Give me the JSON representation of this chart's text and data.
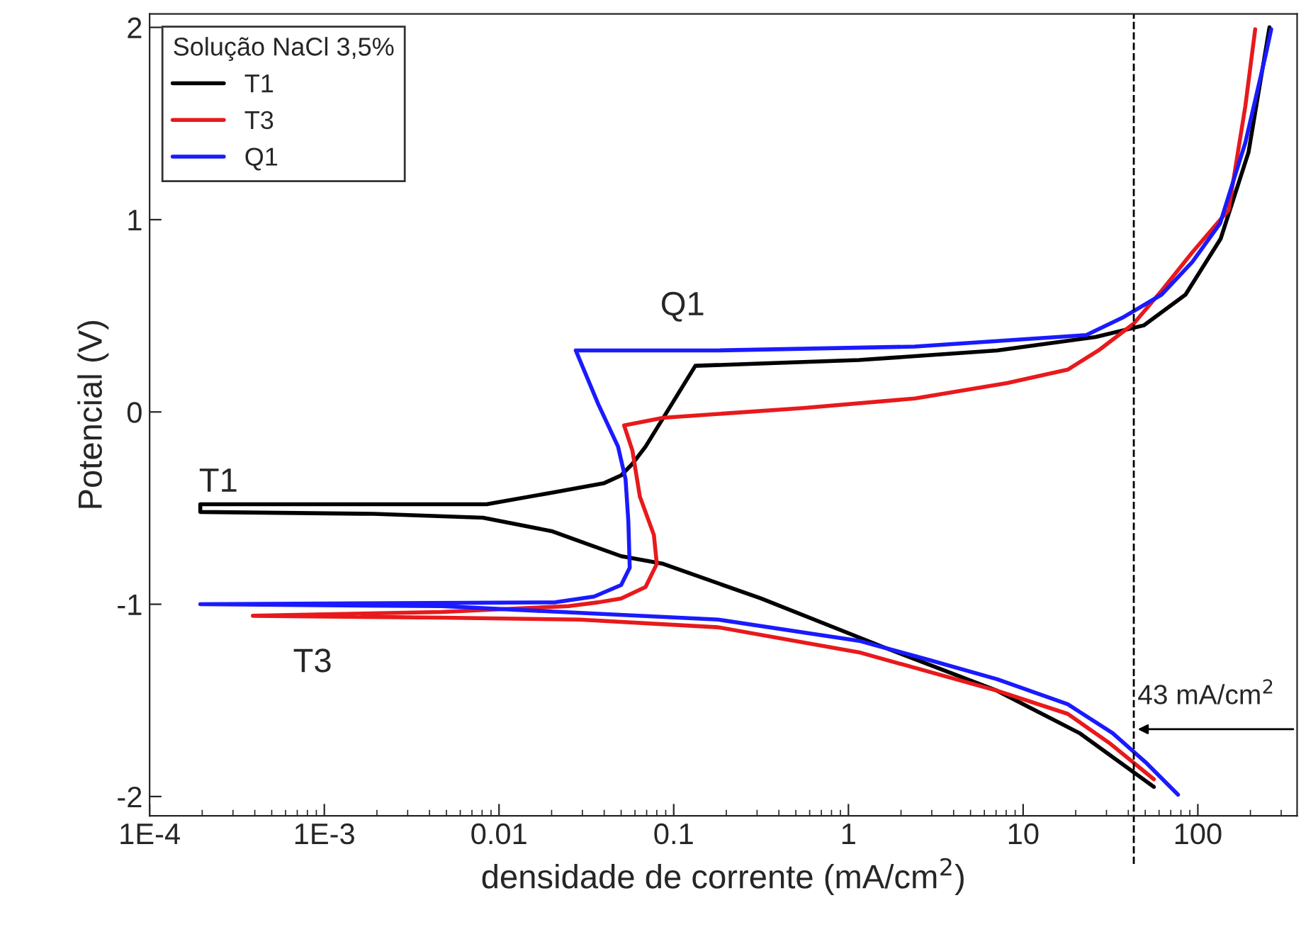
{
  "chart_data": {
    "type": "line",
    "xlabel": "densidade de corrente (mA/cm$^{2}$)",
    "ylabel": "Potencial (V)",
    "legend_title": "Solução NaCl 3,5%",
    "log": "x",
    "xlim": [
      0.0001,
      370
    ],
    "ylim": [
      -2.1,
      2.07
    ],
    "xticks": [
      {
        "value": 0.0001,
        "label": "1E-4"
      },
      {
        "value": 0.001,
        "label": "1E-3"
      },
      0.01,
      0.1,
      1,
      10,
      100
    ],
    "yticks": [
      {
        "value": -2,
        "label": "-2"
      },
      {
        "value": -1,
        "label": "-1"
      },
      0,
      1,
      2
    ],
    "grid": false,
    "legend": "top left",
    "line_style": "solid",
    "marker": "none",
    "series": [
      {
        "name": "T1",
        "color": "#000000",
        "x": [
          56,
          21,
          7.1,
          1.66,
          0.316,
          0.087,
          0.05,
          0.02,
          0.0081,
          0.0019,
          0.000195,
          0.000195,
          0.0019,
          0.0085,
          0.02,
          0.04,
          0.05,
          0.058,
          0.069,
          0.133,
          1.15,
          7.1,
          26,
          49,
          85,
          135,
          195,
          257
        ],
        "values": [
          -1.95,
          -1.67,
          -1.45,
          -1.23,
          -0.97,
          -0.79,
          -0.75,
          -0.62,
          -0.55,
          -0.53,
          -0.52,
          -0.48,
          -0.48,
          -0.48,
          -0.42,
          -0.37,
          -0.33,
          -0.27,
          -0.18,
          0.24,
          0.27,
          0.32,
          0.39,
          0.45,
          0.61,
          0.9,
          1.35,
          2.0
        ]
      },
      {
        "name": "T3",
        "color": "#e8191c",
        "x": [
          56,
          31,
          18,
          7.1,
          1.15,
          0.18,
          0.029,
          0.0047,
          0.00039,
          0.0047,
          0.025,
          0.037,
          0.05,
          0.069,
          0.08,
          0.077,
          0.064,
          0.058,
          0.052,
          0.087,
          0.55,
          2.4,
          8.1,
          18,
          27,
          43,
          62,
          93,
          150,
          187,
          213
        ],
        "values": [
          -1.91,
          -1.72,
          -1.57,
          -1.45,
          -1.25,
          -1.12,
          -1.08,
          -1.07,
          -1.06,
          -1.04,
          -1.01,
          -0.99,
          -0.97,
          -0.91,
          -0.79,
          -0.64,
          -0.44,
          -0.2,
          -0.07,
          -0.03,
          0.02,
          0.07,
          0.15,
          0.22,
          0.32,
          0.46,
          0.63,
          0.83,
          1.05,
          1.59,
          1.99
        ]
      },
      {
        "name": "Q1",
        "color": "#1a1aff",
        "x": [
          77,
          50,
          32.5,
          18,
          7.1,
          2.9,
          1.15,
          0.18,
          0.0047,
          0.000195,
          0.000195,
          0.021,
          0.035,
          0.05,
          0.056,
          0.055,
          0.053,
          0.048,
          0.037,
          0.0275,
          0.18,
          2.4,
          23,
          37,
          62,
          93,
          134,
          187,
          245,
          263
        ],
        "values": [
          -1.99,
          -1.82,
          -1.67,
          -1.52,
          -1.39,
          -1.29,
          -1.19,
          -1.08,
          -1.01,
          -1.0,
          -1.0,
          -0.99,
          -0.96,
          -0.9,
          -0.81,
          -0.57,
          -0.35,
          -0.18,
          0.04,
          0.32,
          0.32,
          0.34,
          0.4,
          0.49,
          0.61,
          0.78,
          0.98,
          1.4,
          1.86,
          1.99
        ]
      }
    ],
    "ref_lines": [
      {
        "axis": "x",
        "value": 43,
        "line_style": "dashed",
        "color": "#000000"
      }
    ],
    "annotations": [
      "T1",
      "T3",
      "Q1",
      {
        "text": "43 mA/cm$^{2}$",
        "x": 43,
        "y": -1.65
      }
    ]
  }
}
